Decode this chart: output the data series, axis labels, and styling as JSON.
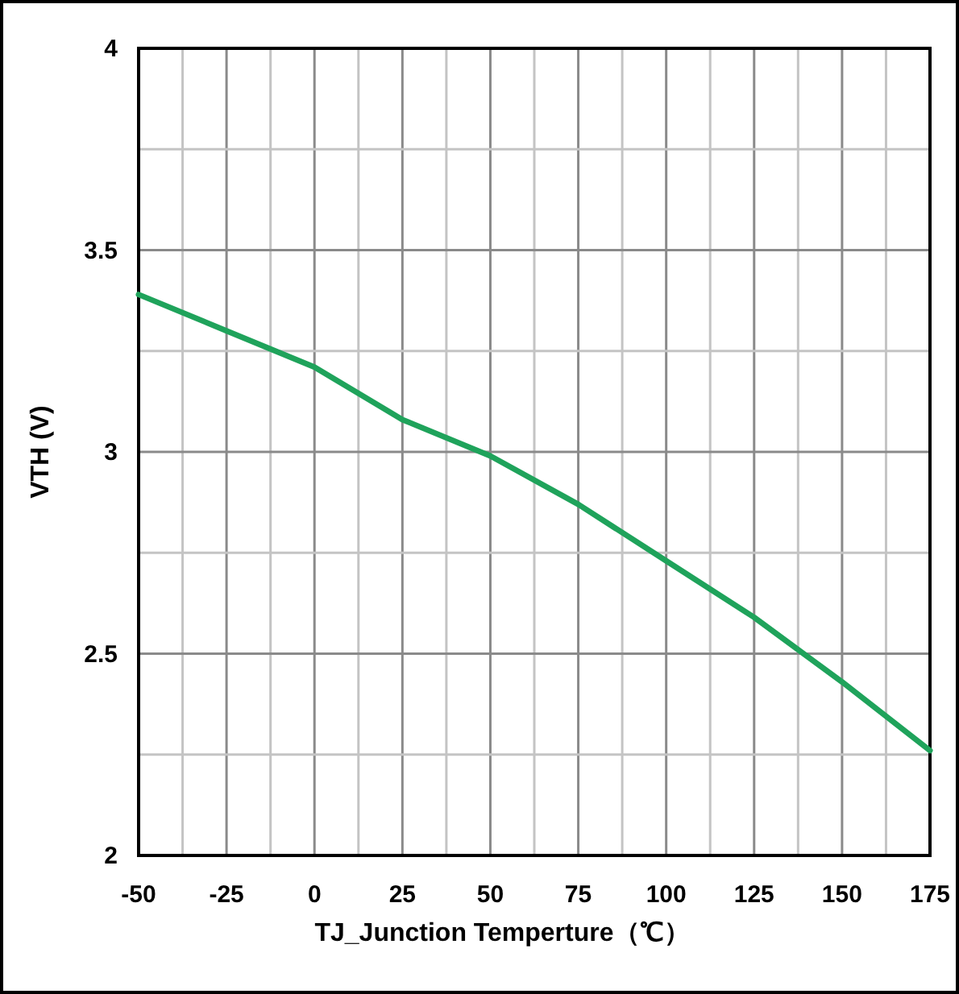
{
  "chart_data": {
    "type": "line",
    "xlabel": "TJ_Junction Temperture（℃）",
    "ylabel": "VTH (V)",
    "x": [
      -50,
      -25,
      0,
      25,
      50,
      75,
      100,
      125,
      150,
      175
    ],
    "series": [
      {
        "color": "#1fa35b",
        "values": [
          3.39,
          3.3,
          3.21,
          3.08,
          2.99,
          2.87,
          2.73,
          2.59,
          2.43,
          2.26
        ]
      }
    ],
    "xlim": [
      -50,
      175
    ],
    "xticks": [
      -50,
      -25,
      0,
      25,
      50,
      75,
      100,
      125,
      150,
      175
    ],
    "ylim": [
      2,
      4
    ],
    "yticks": [
      2,
      2.5,
      3,
      3.5,
      4
    ],
    "grid": true,
    "marker": "none",
    "line_style": "solid"
  }
}
